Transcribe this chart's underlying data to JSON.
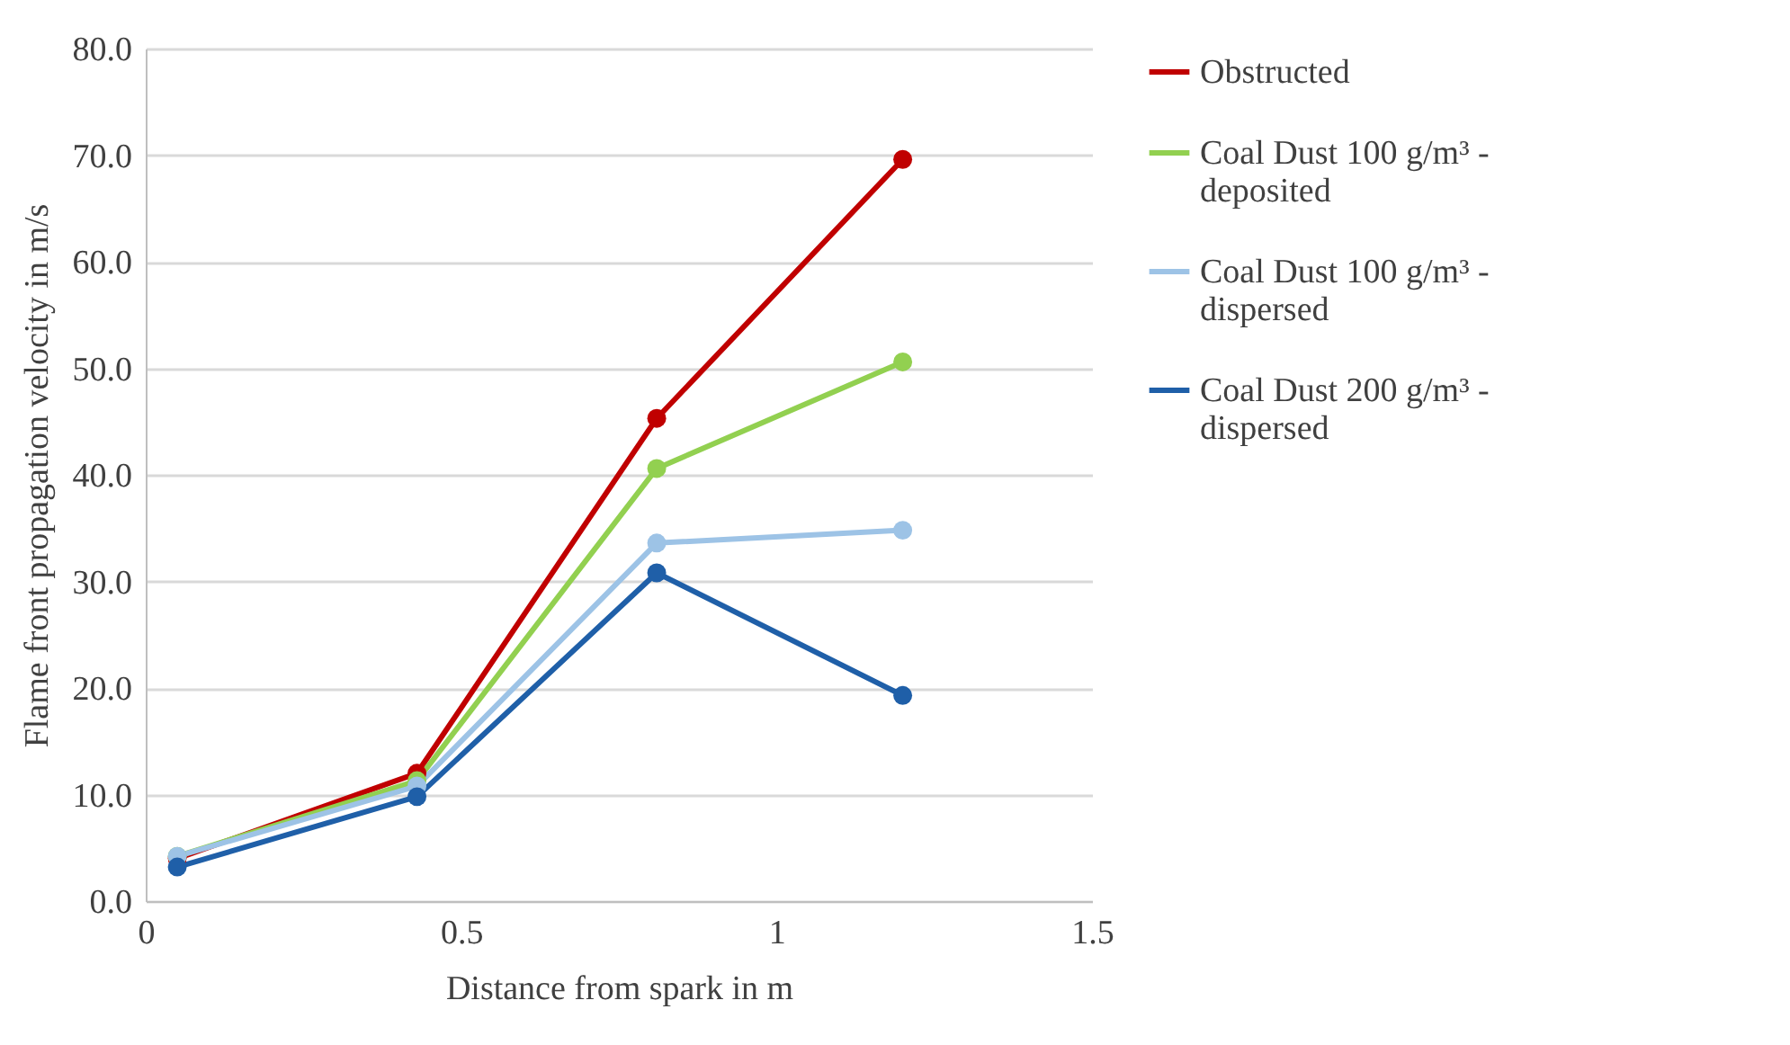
{
  "chart_data": {
    "type": "line",
    "xlabel": "Distance from spark in m",
    "ylabel": "Flame front propagation velocity in m/s",
    "x": [
      0.05,
      0.43,
      0.81,
      1.2
    ],
    "series": [
      {
        "name": "Obstructed",
        "color": "#c00000",
        "values": [
          4.0,
          12.0,
          45.3,
          69.6
        ]
      },
      {
        "name": "Coal Dust 100 g/m³ - deposited",
        "color": "#92d050",
        "values": [
          4.2,
          11.3,
          40.6,
          50.6
        ]
      },
      {
        "name": "Coal Dust 100 g/m³ - dispersed",
        "color": "#9dc3e6",
        "values": [
          4.2,
          10.8,
          33.6,
          34.8
        ]
      },
      {
        "name": "Coal Dust 200 g/m³ - dispersed",
        "color": "#1f5fa8",
        "values": [
          3.2,
          9.8,
          30.8,
          19.3
        ]
      }
    ],
    "xlim": [
      0,
      1.5
    ],
    "xticks": [
      0,
      0.5,
      1,
      1.5
    ],
    "ylim": [
      0,
      80
    ],
    "yticks": [
      {
        "value": 0,
        "label": "0.0"
      },
      {
        "value": 10,
        "label": "10.0"
      },
      {
        "value": 20,
        "label": "20.0"
      },
      {
        "value": 30,
        "label": "30.0"
      },
      {
        "value": 40,
        "label": "40.0"
      },
      {
        "value": 50,
        "label": "50.0"
      },
      {
        "value": 60,
        "label": "60.0"
      },
      {
        "value": 70,
        "label": "70.0"
      },
      {
        "value": 80,
        "label": "80.0"
      }
    ],
    "grid": "y",
    "legend": "right",
    "marker": "circle",
    "line_style": "solid"
  }
}
